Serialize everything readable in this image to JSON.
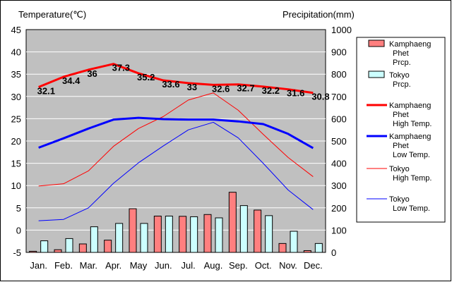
{
  "chart_data": {
    "type": "bar+line",
    "title": "",
    "left_axis_title": "Temperature(℃)",
    "right_axis_title": "Precipitation(mm)",
    "left_ylim": [
      -5,
      45
    ],
    "right_ylim": [
      0,
      1000
    ],
    "left_ticks": [
      "-5",
      "0",
      "5",
      "10",
      "15",
      "20",
      "25",
      "30",
      "35",
      "40",
      "45"
    ],
    "right_ticks": [
      "0",
      "100",
      "200",
      "300",
      "400",
      "500",
      "600",
      "700",
      "800",
      "900",
      "1000"
    ],
    "categories": [
      "Jan.",
      "Feb.",
      "Mar.",
      "Apr.",
      "May",
      "Jun.",
      "Jul.",
      "Aug.",
      "Sep.",
      "Oct.",
      "Nov.",
      "Dec."
    ],
    "bar_series": [
      {
        "name": "Kamphaeng Phet Prcp.",
        "legend_lines": [
          "Kamphaeng",
          "Phet",
          "Prcp."
        ],
        "color": "#ff7f7f",
        "values": [
          5,
          12,
          38,
          55,
          196,
          163,
          162,
          170,
          270,
          190,
          40,
          8
        ]
      },
      {
        "name": "Tokyo Prcp.",
        "legend_lines": [
          "Tokyo",
          "Prcp."
        ],
        "color": "#ccffff",
        "values": [
          52,
          62,
          115,
          130,
          130,
          163,
          160,
          155,
          210,
          165,
          95,
          40
        ]
      }
    ],
    "line_series": [
      {
        "name": "Kamphaeng Phet High Temp.",
        "legend_lines": [
          "Kamphaeng",
          "Phet",
          "High Temp."
        ],
        "color": "#ff0000",
        "thick": true,
        "values": [
          32.1,
          34.4,
          36,
          37.3,
          35.2,
          33.6,
          33,
          32.6,
          32.7,
          32.2,
          31.6,
          30.8
        ],
        "labels": [
          "32.1",
          "34.4",
          "36",
          "37.3",
          "35.2",
          "33.6",
          "33",
          "32.6",
          "32.7",
          "32.2",
          "31.6",
          "30.8"
        ]
      },
      {
        "name": "Kamphaeng Phet Low Temp.",
        "legend_lines": [
          "Kamphaeng",
          "Phet",
          "Low Temp."
        ],
        "color": "#0000ff",
        "thick": true,
        "values": [
          18.5,
          20.6,
          22.8,
          24.8,
          25.2,
          24.9,
          24.8,
          24.8,
          24.4,
          23.8,
          21.6,
          18.4
        ]
      },
      {
        "name": "Tokyo High Temp.",
        "legend_lines": [
          "Tokyo",
          "High Temp."
        ],
        "color": "#ff0000",
        "thick": false,
        "values": [
          9.9,
          10.4,
          13.3,
          18.8,
          22.8,
          25.5,
          29.2,
          30.8,
          26.9,
          21.5,
          16.3,
          12.0
        ]
      },
      {
        "name": "Tokyo Low Temp.",
        "legend_lines": [
          "Tokyo",
          "Low Temp."
        ],
        "color": "#0000ff",
        "thick": false,
        "values": [
          2.1,
          2.4,
          5.0,
          10.5,
          15.1,
          18.9,
          22.5,
          24.2,
          20.7,
          15.0,
          9.0,
          4.6
        ]
      }
    ],
    "grid": true
  }
}
